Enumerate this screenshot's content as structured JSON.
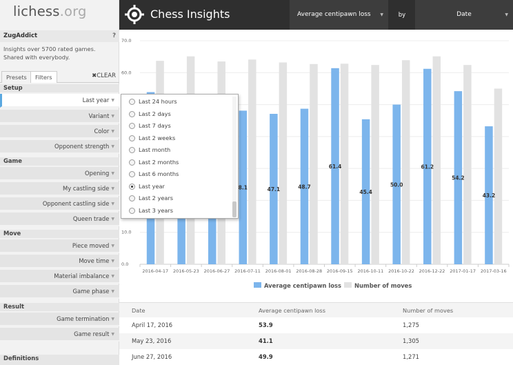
{
  "sidebar": {
    "logo_main": "lichess",
    "logo_tld": ".org",
    "username": "ZugAddict",
    "help": "?",
    "description": "Insights over 5700 rated games. Shared with everybody.",
    "tabs": [
      "Presets",
      "Filters"
    ],
    "clear": "✖CLEAR",
    "groups": {
      "setup": "Setup",
      "game": "Game",
      "move": "Move",
      "result": "Result",
      "definitions": "Definitions"
    },
    "setup_items": [
      "Last year",
      "Variant",
      "Color",
      "Opponent strength"
    ],
    "game_items": [
      "Opening",
      "My castling side",
      "Opponent castling side",
      "Queen trade"
    ],
    "move_items": [
      "Piece moved",
      "Move time",
      "Material imbalance",
      "Game phase"
    ],
    "result_items": [
      "Game termination",
      "Game result"
    ]
  },
  "header": {
    "title": "Chess Insights",
    "metric": "Average centipawn loss",
    "by": "by",
    "dimension": "Date"
  },
  "dropdown": {
    "options": [
      "Last 24 hours",
      "Last 2 days",
      "Last 7 days",
      "Last 2 weeks",
      "Last month",
      "Last 2 months",
      "Last 6 months",
      "Last year",
      "Last 2 years",
      "Last 3 years"
    ],
    "selected": "Last year"
  },
  "chart_data": {
    "type": "bar",
    "categories": [
      "2016-04-17",
      "2016-05-23",
      "2016-06-27",
      "2016-07-11",
      "2016-08-01",
      "2016-08-28",
      "2016-09-15",
      "2016-10-11",
      "2016-10-22",
      "2016-12-22",
      "2017-01-17",
      "2017-03-16"
    ],
    "series": [
      {
        "name": "Average centipawn loss",
        "values": [
          53.9,
          41.1,
          49.9,
          48.1,
          47.1,
          48.7,
          61.4,
          45.4,
          50.0,
          61.2,
          54.2,
          43.2
        ],
        "color": "#7cb5ec"
      },
      {
        "name": "Number of moves",
        "values": [
          63.7,
          65.1,
          63.5,
          64.1,
          63.2,
          62.7,
          62.8,
          62.4,
          63.9,
          65.1,
          62.4,
          55.0
        ],
        "color": "#e2e2e2"
      }
    ],
    "visible_value_labels": [
      "",
      "",
      "",
      "8.1",
      "47.1",
      "48.7",
      "61.4",
      "45.4",
      "50.0",
      "61.2",
      "54.2",
      "43.2"
    ],
    "ylim": [
      0,
      70
    ],
    "yticks": [
      "0.0",
      "10.0",
      "20.0",
      "30.0",
      "40.0",
      "50.0",
      "60.0",
      "70.0"
    ],
    "grid": true,
    "legend_position": "bottom"
  },
  "table": {
    "headers": [
      "Date",
      "Average centipawn loss",
      "Number of moves"
    ],
    "rows": [
      [
        "April 17, 2016",
        "53.9",
        "1,275"
      ],
      [
        "May 23, 2016",
        "41.1",
        "1,305"
      ],
      [
        "June 27, 2016",
        "49.9",
        "1,271"
      ]
    ]
  }
}
